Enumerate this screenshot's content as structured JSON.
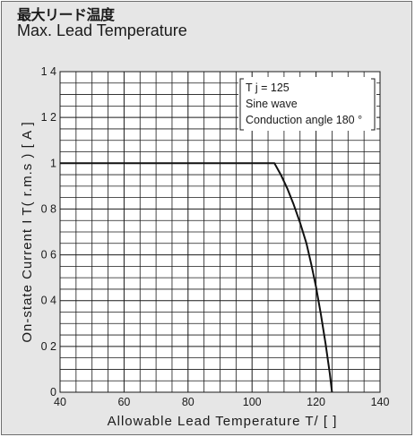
{
  "header": {
    "title_jp": "最大リード温度",
    "title_en": "Max. Lead Temperature"
  },
  "chart_data": {
    "type": "line",
    "title": "Max. Lead Temperature",
    "xlabel": "Allowable Lead Temperature  T/ [   ]",
    "ylabel": "On-state Current  I T( r.m.s ) [ A ]",
    "xlim": [
      40,
      140
    ],
    "ylim": [
      0,
      1.4
    ],
    "xticks": [
      40,
      60,
      80,
      100,
      120,
      140
    ],
    "xtick_labels": [
      "40",
      "60",
      "80",
      "100",
      "120",
      "140"
    ],
    "yticks": [
      0,
      0.2,
      0.4,
      0.6,
      0.8,
      1.0,
      1.2,
      1.4
    ],
    "ytick_labels": [
      "0",
      "0 2",
      "0 4",
      "0 6",
      "0 8",
      "1",
      "1 2",
      "1 4"
    ],
    "grid": true,
    "series": [
      {
        "x": [
          40,
          107,
          109,
          111,
          113,
          115,
          117,
          118.5,
          120,
          121.5,
          123,
          124.3,
          125
        ],
        "y": [
          1.0,
          1.0,
          0.95,
          0.89,
          0.82,
          0.74,
          0.65,
          0.56,
          0.46,
          0.34,
          0.21,
          0.08,
          0.0
        ]
      }
    ],
    "annotation": {
      "lines": [
        "T j = 125",
        "Sine wave",
        "Conduction angle 180 °"
      ],
      "position": "top-right"
    }
  }
}
